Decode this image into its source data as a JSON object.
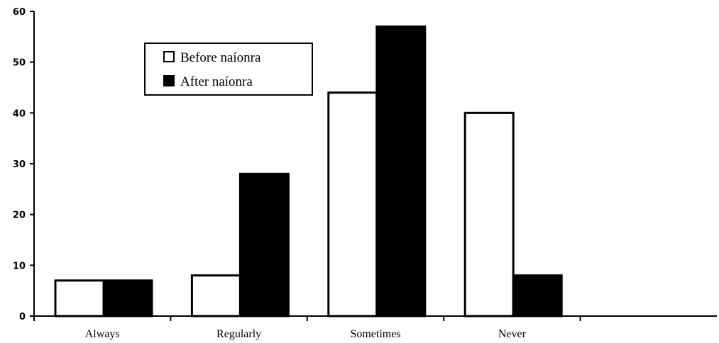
{
  "chart_data": {
    "type": "bar",
    "title": "",
    "xlabel": "",
    "ylabel": "",
    "categories": [
      "Always",
      "Regularly",
      "Sometimes",
      "Never",
      ""
    ],
    "series": [
      {
        "name": "Before naíonra",
        "values": [
          7,
          8,
          44,
          40,
          null
        ],
        "color": "#ffffff",
        "stroke": "#000000"
      },
      {
        "name": "After naíonra",
        "values": [
          7,
          28,
          57,
          8,
          null
        ],
        "color": "#000000",
        "stroke": "#000000"
      }
    ],
    "ylim": [
      0,
      60
    ],
    "yticks": [
      0,
      10,
      20,
      30,
      40,
      50,
      60
    ],
    "ytick_labels": [
      "0",
      "10",
      "20",
      "30",
      "40",
      "50",
      "60"
    ],
    "grid": false,
    "legend_position": "top-left"
  }
}
